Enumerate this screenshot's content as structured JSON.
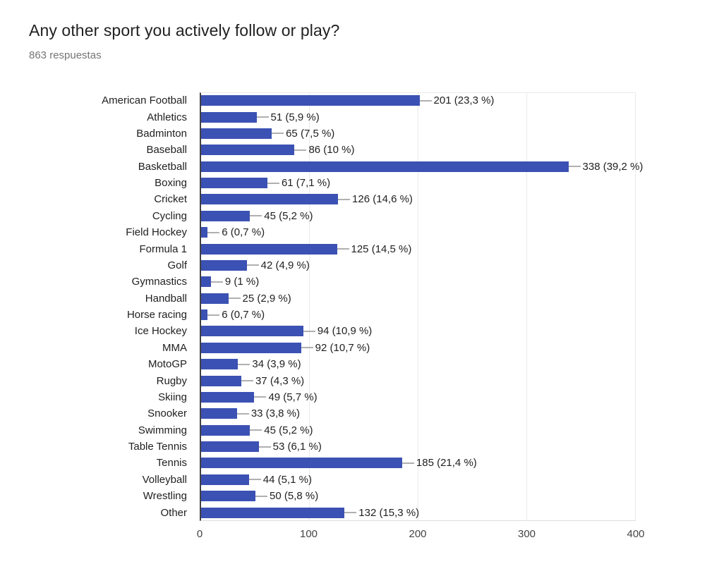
{
  "header": {
    "title": "Any other sport you actively follow or play?",
    "responses": "863 respuestas"
  },
  "chart_data": {
    "type": "bar",
    "orientation": "horizontal",
    "title": "Any other sport you actively follow or play?",
    "subtitle": "863 respuestas",
    "categories": [
      "American Football",
      "Athletics",
      "Badminton",
      "Baseball",
      "Basketball",
      "Boxing",
      "Cricket",
      "Cycling",
      "Field Hockey",
      "Formula 1",
      "Golf",
      "Gymnastics",
      "Handball",
      "Horse racing",
      "Ice Hockey",
      "MMA",
      "MotoGP",
      "Rugby",
      "Skiing",
      "Snooker",
      "Swimming",
      "Table Tennis",
      "Tennis",
      "Volleyball",
      "Wrestling",
      "Other"
    ],
    "values": [
      201,
      51,
      65,
      86,
      338,
      61,
      126,
      45,
      6,
      125,
      42,
      9,
      25,
      6,
      94,
      92,
      34,
      37,
      49,
      33,
      45,
      53,
      185,
      44,
      50,
      132
    ],
    "value_labels": [
      "201 (23,3 %)",
      "51 (5,9 %)",
      "65 (7,5 %)",
      "86 (10 %)",
      "338 (39,2 %)",
      "61 (7,1 %)",
      "126 (14,6 %)",
      "45 (5,2 %)",
      "6 (0,7 %)",
      "125 (14,5 %)",
      "42 (4,9 %)",
      "9 (1 %)",
      "25 (2,9 %)",
      "6 (0,7 %)",
      "94 (10,9 %)",
      "92 (10,7 %)",
      "34 (3,9 %)",
      "37 (4,3 %)",
      "49 (5,7 %)",
      "33 (3,8 %)",
      "45 (5,2 %)",
      "53 (6,1 %)",
      "185 (21,4 %)",
      "44 (5,1 %)",
      "50 (5,8 %)",
      "132 (15,3 %)"
    ],
    "x_ticks": [
      0,
      100,
      200,
      300,
      400
    ],
    "xlim": [
      0,
      400
    ],
    "xlabel": "",
    "ylabel": "",
    "bar_color": "#3b51b3",
    "grid": true,
    "legend_position": "none"
  }
}
